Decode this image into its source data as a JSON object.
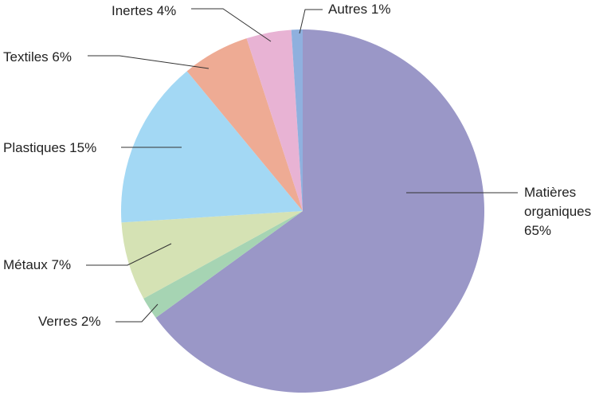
{
  "chart_data": {
    "type": "pie",
    "categories": [
      "Matières organiques",
      "Verres",
      "Métaux",
      "Plastiques",
      "Textiles",
      "Inertes",
      "Autres"
    ],
    "values": [
      65,
      2,
      7,
      15,
      6,
      4,
      1
    ],
    "value_labels": [
      "65%",
      "2%",
      "7%",
      "15%",
      "6%",
      "4%",
      "1%"
    ],
    "colors": [
      "#9a97c7",
      "#a6d4b3",
      "#d5e2b4",
      "#a3d8f4",
      "#eeab94",
      "#e8b3d4",
      "#8fb0de"
    ]
  }
}
